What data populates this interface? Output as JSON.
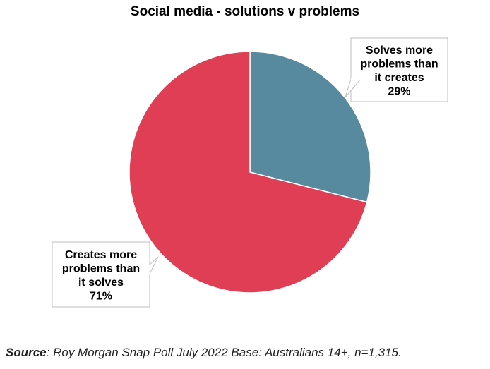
{
  "chart_data": {
    "type": "pie",
    "title": "Social media - solutions v problems",
    "slices": [
      {
        "label_lines": [
          "Solves more",
          "problems than",
          "it creates"
        ],
        "value": 29,
        "value_label": "29%",
        "color": "#578a9e"
      },
      {
        "label_lines": [
          "Creates more",
          "problems than",
          "it solves"
        ],
        "value": 71,
        "value_label": "71%",
        "color": "#e03e54"
      }
    ]
  },
  "source": {
    "label": "Source",
    "text": ": Roy Morgan Snap Poll July 2022 Base: Australians 14+, n=1,315."
  }
}
